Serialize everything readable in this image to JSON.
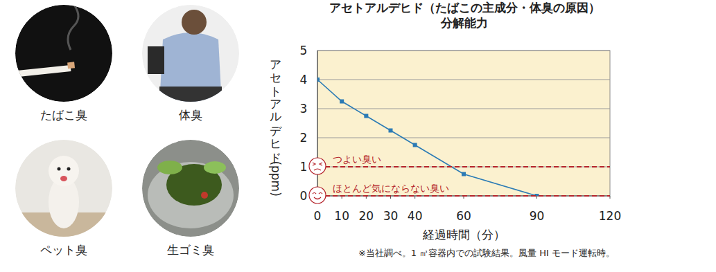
{
  "chart_data": {
    "type": "line",
    "title": "アセトアルデヒド（たばこの主成分・体臭の原因）",
    "subtitle": "分解能力",
    "x_label": "経過時間（分）",
    "y_label": "アセトアルデヒド (ppm)",
    "x": [
      0,
      10,
      20,
      30,
      40,
      60,
      90
    ],
    "values": [
      4.0,
      3.25,
      2.75,
      2.25,
      1.75,
      0.75,
      0
    ],
    "color": "#2b7bb5",
    "marker": "square",
    "xlim": [
      0,
      120
    ],
    "xticks": [
      0,
      10,
      20,
      30,
      40,
      60,
      90,
      120
    ],
    "ylim": [
      0,
      5
    ],
    "yticks": [
      0,
      1,
      2,
      3,
      4,
      5
    ],
    "grid": true,
    "annotations": [
      {
        "text": "つよい臭い",
        "y": 1
      },
      {
        "text": "ほとんど気にならない臭い",
        "y": 0
      }
    ],
    "note": "※当社調べ。1 ㎥容器内での試験結果。風量 HI モード運転時。"
  },
  "icons": [
    "たばこ臭",
    "体臭",
    "ペット臭",
    "生ゴミ臭"
  ]
}
